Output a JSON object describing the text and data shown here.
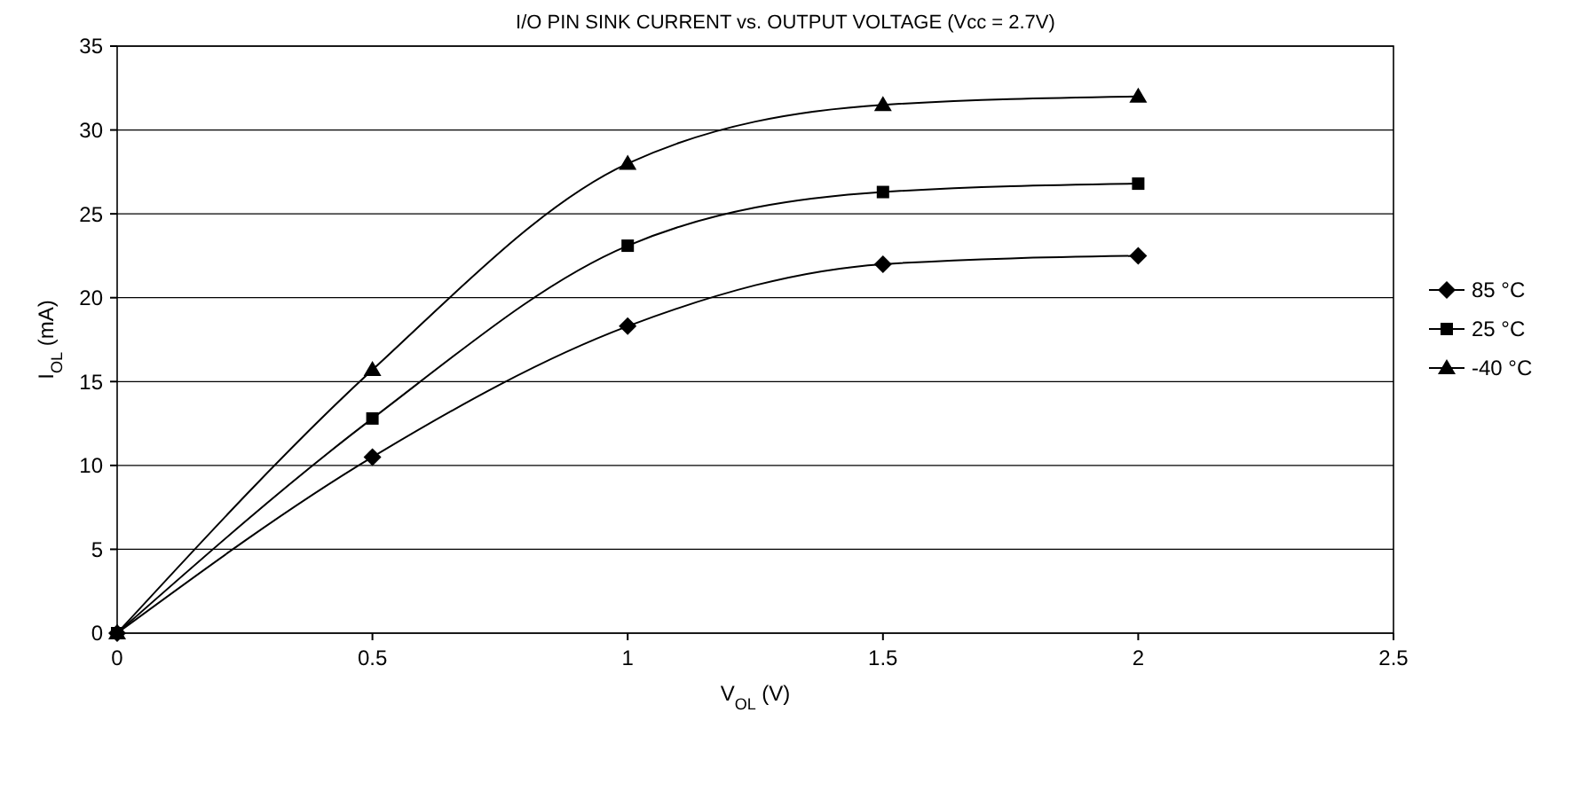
{
  "chart_data": {
    "type": "line",
    "title": "I/O PIN SINK CURRENT vs. OUTPUT VOLTAGE (Vcc = 2.7V)",
    "xlabel": "V$_{OL}$ (V)",
    "ylabel": "I$_{OL}$ (mA)",
    "x": [
      0,
      0.5,
      1,
      1.5,
      2
    ],
    "series": [
      {
        "name": "85 °C",
        "color": "#000000",
        "marker": "diamond",
        "values": [
          0,
          10.5,
          18.3,
          22,
          22.5
        ]
      },
      {
        "name": "25 °C",
        "color": "#000000",
        "marker": "square",
        "values": [
          0,
          12.8,
          23.1,
          26.3,
          26.8
        ]
      },
      {
        "name": "-40 °C",
        "color": "#000000",
        "marker": "triangle",
        "values": [
          0,
          15.7,
          28,
          31.5,
          32
        ]
      }
    ],
    "xlim": [
      0,
      2.5
    ],
    "xticks": [
      0,
      0.5,
      1,
      1.5,
      2,
      2.5
    ],
    "ylim": [
      0,
      35
    ],
    "yticks": [
      0,
      5,
      10,
      15,
      20,
      25,
      30,
      35
    ],
    "grid": "y",
    "legend": "right",
    "line_style": "solid"
  }
}
